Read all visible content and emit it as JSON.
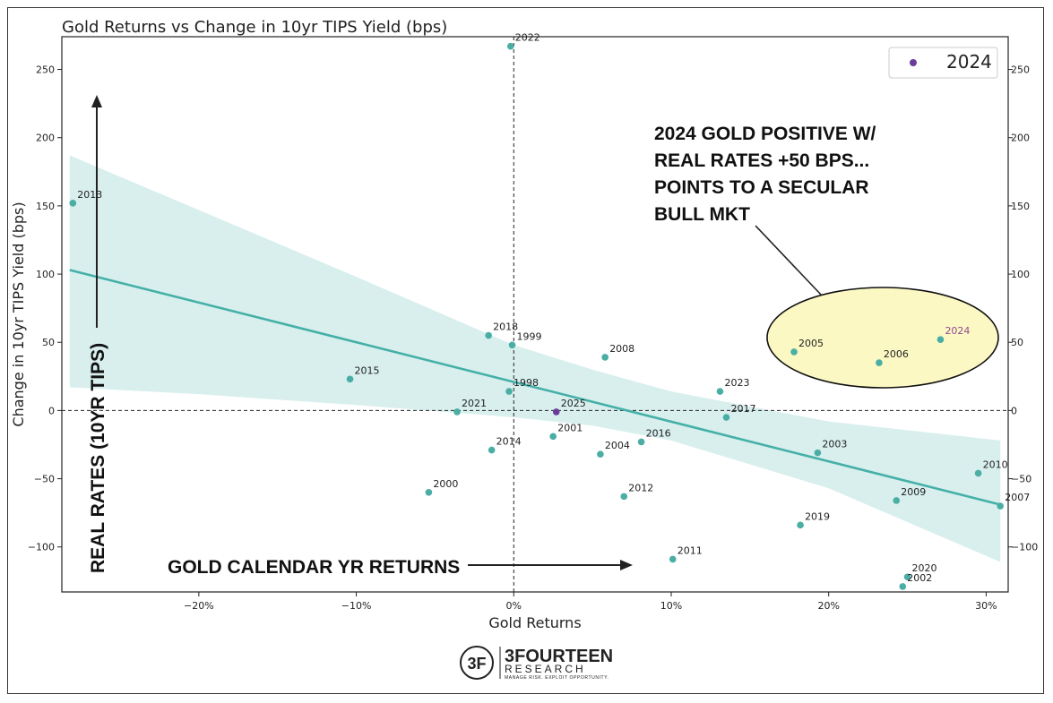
{
  "chart_data": {
    "type": "scatter",
    "title": "Gold Returns vs Change in 10yr TIPS Yield (bps)",
    "xlabel": "Gold Returns",
    "ylabel": "Change in 10yr TIPS Yield (bps)",
    "xlim": [
      -0.287,
      0.314
    ],
    "ylim": [
      -133,
      274
    ],
    "xticks": [
      -0.2,
      -0.1,
      0,
      0.1,
      0.2,
      0.3
    ],
    "xtick_labels": [
      "−20%",
      "−10%",
      "0%",
      "10%",
      "20%",
      "30%"
    ],
    "yticks": [
      -100,
      -50,
      0,
      50,
      100,
      150,
      200,
      250
    ],
    "ytick_labels": [
      "−100",
      "−50",
      "0",
      "50",
      "100",
      "150",
      "200",
      "250"
    ],
    "legend": {
      "label": "2024",
      "placement": "top-right"
    },
    "colors": {
      "point": "#4aaea4",
      "highlight": "#6a3d9a",
      "fit": "#45b0a7",
      "band": "#d8efee",
      "ellipse": "#fbf8c4",
      "highlight_label": "#8e4a8e"
    },
    "points": [
      {
        "year": "2022",
        "x": -0.002,
        "y": 267
      },
      {
        "year": "2013",
        "x": -0.28,
        "y": 152
      },
      {
        "year": "2018",
        "x": -0.016,
        "y": 55
      },
      {
        "year": "1999",
        "x": -0.001,
        "y": 48
      },
      {
        "year": "2008",
        "x": 0.058,
        "y": 39
      },
      {
        "year": "2015",
        "x": -0.104,
        "y": 23
      },
      {
        "year": "1998",
        "x": -0.003,
        "y": 14
      },
      {
        "year": "2021",
        "x": -0.036,
        "y": -1
      },
      {
        "year": "2025",
        "x": 0.027,
        "y": -1
      },
      {
        "year": "2001",
        "x": 0.025,
        "y": -19
      },
      {
        "year": "2014",
        "x": -0.014,
        "y": -29
      },
      {
        "year": "2004",
        "x": 0.055,
        "y": -32
      },
      {
        "year": "2016",
        "x": 0.081,
        "y": -23
      },
      {
        "year": "2000",
        "x": -0.054,
        "y": -60
      },
      {
        "year": "2012",
        "x": 0.07,
        "y": -63
      },
      {
        "year": "2023",
        "x": 0.131,
        "y": 14
      },
      {
        "year": "2017",
        "x": 0.135,
        "y": -5
      },
      {
        "year": "2003",
        "x": 0.193,
        "y": -31
      },
      {
        "year": "2019",
        "x": 0.182,
        "y": -84
      },
      {
        "year": "2011",
        "x": 0.101,
        "y": -109
      },
      {
        "year": "2005",
        "x": 0.178,
        "y": 43
      },
      {
        "year": "2006",
        "x": 0.232,
        "y": 35
      },
      {
        "year": "2024",
        "x": 0.271,
        "y": 52
      },
      {
        "year": "2010",
        "x": 0.295,
        "y": -46
      },
      {
        "year": "2009",
        "x": 0.243,
        "y": -66
      },
      {
        "year": "2007",
        "x": 0.309,
        "y": -70
      },
      {
        "year": "2020",
        "x": 0.25,
        "y": -122
      },
      {
        "year": "2002",
        "x": 0.247,
        "y": -129
      }
    ],
    "fit_line": {
      "x": [
        -0.282,
        0.309
      ],
      "y": [
        103,
        -69
      ]
    },
    "confidence_band": {
      "x": [
        -0.282,
        -0.2,
        -0.1,
        0.0,
        0.05,
        0.1,
        0.2,
        0.309
      ],
      "upper": [
        187,
        147,
        98,
        48,
        30,
        14,
        -8,
        -22
      ],
      "lower": [
        17,
        12,
        4,
        -5,
        -11,
        -22,
        -57,
        -111
      ]
    },
    "annotations": {
      "callout": [
        "2024 GOLD POSITIVE W/",
        "REAL RATES +50 BPS...",
        "POINTS TO A SECULAR",
        "BULL MKT"
      ],
      "y_arrow_label": "REAL RATES (10YR TIPS)",
      "x_arrow_label": "GOLD CALENDAR YR RETURNS"
    }
  },
  "logo": {
    "mark": "3F",
    "name": "3FOURTEEN",
    "sub": "RESEARCH",
    "tagline": "MANAGE RISK. EXPLOIT OPPORTUNITY."
  }
}
